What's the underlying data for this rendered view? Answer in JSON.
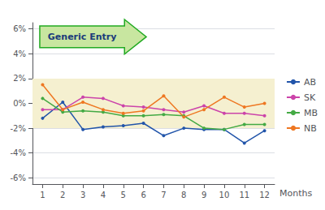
{
  "chart_data": {
    "type": "line",
    "x": [
      1,
      2,
      3,
      4,
      5,
      6,
      7,
      8,
      9,
      10,
      11,
      12
    ],
    "series": [
      {
        "name": "AB",
        "color": "#2255aa",
        "values": [
          -1.2,
          0.1,
          -2.1,
          -1.9,
          -1.8,
          -1.6,
          -2.6,
          -2.0,
          -2.1,
          -2.1,
          -3.2,
          -2.2
        ]
      },
      {
        "name": "SK",
        "color": "#cc44aa",
        "values": [
          -0.5,
          -0.5,
          0.5,
          0.4,
          -0.2,
          -0.3,
          -0.5,
          -0.7,
          -0.2,
          -0.8,
          -0.8,
          -1.0
        ]
      },
      {
        "name": "MB",
        "color": "#44aa44",
        "values": [
          0.4,
          -0.7,
          -0.6,
          -0.7,
          -1.0,
          -1.0,
          -0.9,
          -1.0,
          -2.0,
          -2.1,
          -1.7,
          -1.7
        ]
      },
      {
        "name": "NB",
        "color": "#ee7722",
        "values": [
          1.5,
          -0.5,
          0.1,
          -0.5,
          -0.8,
          -0.6,
          0.6,
          -1.1,
          -0.5,
          0.5,
          -0.3,
          0.0
        ]
      }
    ],
    "xlabel": "Months",
    "xlim": [
      0.5,
      12.5
    ],
    "xticks": [
      1,
      2,
      3,
      4,
      5,
      6,
      7,
      8,
      9,
      10,
      11,
      12
    ],
    "ylim": [
      -6.5,
      6.5
    ],
    "yticks": [
      {
        "value": -6,
        "label": "-6%"
      },
      {
        "value": -4,
        "label": "-4%"
      },
      {
        "value": -2,
        "label": "-2%"
      },
      {
        "value": 0,
        "label": "0%"
      },
      {
        "value": 2,
        "label": "2%"
      },
      {
        "value": 4,
        "label": "4%"
      },
      {
        "value": 6,
        "label": "6%"
      }
    ],
    "shade": {
      "from": -2.0,
      "to": 2.0,
      "color": "#f5f0d0"
    },
    "annotation": {
      "text": "Generic Entry",
      "color": "#1a3a7a",
      "fill": "#c8e6a0",
      "edge": "#22aa22"
    },
    "grid": true,
    "legend": "right",
    "marker": "circle"
  }
}
